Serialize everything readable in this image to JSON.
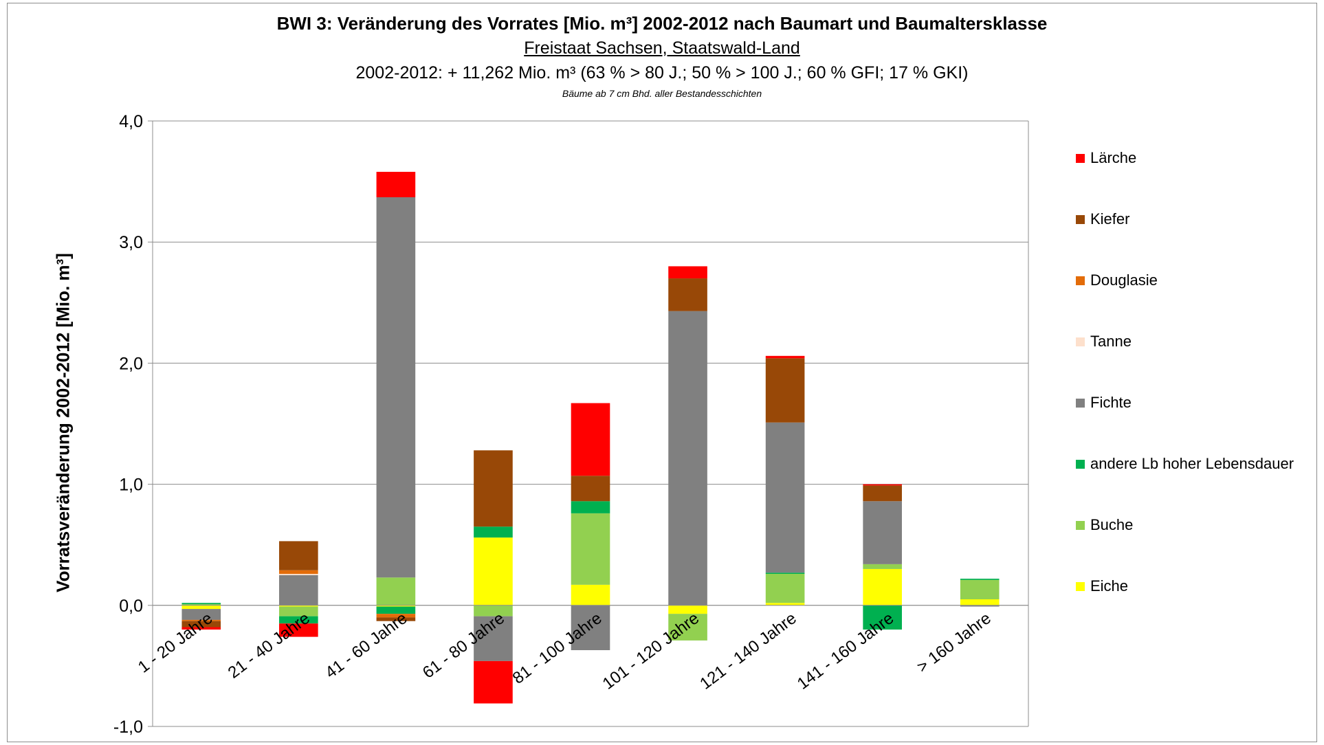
{
  "chart_data": {
    "type": "bar",
    "stacked": true,
    "title": "BWI 3: Veränderung des Vorrates  [Mio. m³] 2002-2012 nach Baumart und Baumaltersklasse",
    "subtitle": "Freistaat Sachsen, Staatswald-Land",
    "subtitle2": "2002-2012: + 11,262 Mio. m³  (63 % > 80 J.; 50 % > 100 J.; 60 % GFI; 17 % GKI)",
    "note": "Bäume ab 7 cm Bhd. aller Bestandesschichten",
    "ylabel": "Vorratsveränderung 2002-2012 [Mio. m³]",
    "ylim": [
      -1.0,
      4.0
    ],
    "yticks": [
      "-1,0",
      "0,0",
      "1,0",
      "2,0",
      "3,0",
      "4,0"
    ],
    "yticks_values": [
      -1.0,
      0.0,
      1.0,
      2.0,
      3.0,
      4.0
    ],
    "grid": true,
    "legend_position": "right",
    "categories": [
      "1 - 20 Jahre",
      "21 - 40 Jahre",
      "41 - 60 Jahre",
      "61 - 80 Jahre",
      "81 - 100 Jahre",
      "101 - 120 Jahre",
      "121 - 140 Jahre",
      "141 - 160 Jahre",
      "> 160 Jahre"
    ],
    "series": [
      {
        "name": "Eiche",
        "color": "#ffff00",
        "values": [
          -0.03,
          -0.01,
          -0.01,
          0.56,
          0.17,
          -0.07,
          0.02,
          0.3,
          0.05
        ]
      },
      {
        "name": "Buche",
        "color": "#92d050",
        "values": [
          0.01,
          -0.08,
          0.23,
          -0.09,
          0.59,
          -0.22,
          0.24,
          0.04,
          0.16
        ]
      },
      {
        "name": "andere Lb hoher Lebensdauer",
        "color": "#00b050",
        "values": [
          0.01,
          -0.06,
          -0.06,
          0.09,
          0.1,
          0.0,
          0.01,
          -0.2,
          0.01
        ]
      },
      {
        "name": "Fichte",
        "color": "#808080",
        "values": [
          -0.09,
          0.25,
          3.14,
          -0.37,
          -0.37,
          2.43,
          1.24,
          0.52,
          -0.01
        ]
      },
      {
        "name": "Tanne",
        "color": "#fde0cc",
        "values": [
          0.0,
          0.01,
          0.0,
          0.0,
          0.0,
          0.0,
          0.0,
          0.0,
          0.0
        ]
      },
      {
        "name": "Douglasie",
        "color": "#e36c09",
        "values": [
          -0.01,
          0.03,
          -0.03,
          0.0,
          0.0,
          0.0,
          0.0,
          0.0,
          0.0
        ]
      },
      {
        "name": "Kiefer",
        "color": "#984807",
        "values": [
          -0.05,
          0.24,
          -0.03,
          0.63,
          0.21,
          0.27,
          0.53,
          0.13,
          0.0
        ]
      },
      {
        "name": "Lärche",
        "color": "#ff0000",
        "values": [
          -0.02,
          -0.11,
          0.21,
          -0.35,
          0.6,
          0.1,
          0.02,
          0.01,
          0.0
        ]
      }
    ],
    "legend_order": [
      "Lärche",
      "Kiefer",
      "Douglasie",
      "Tanne",
      "Fichte",
      "andere Lb hoher Lebensdauer",
      "Buche",
      "Eiche"
    ]
  }
}
